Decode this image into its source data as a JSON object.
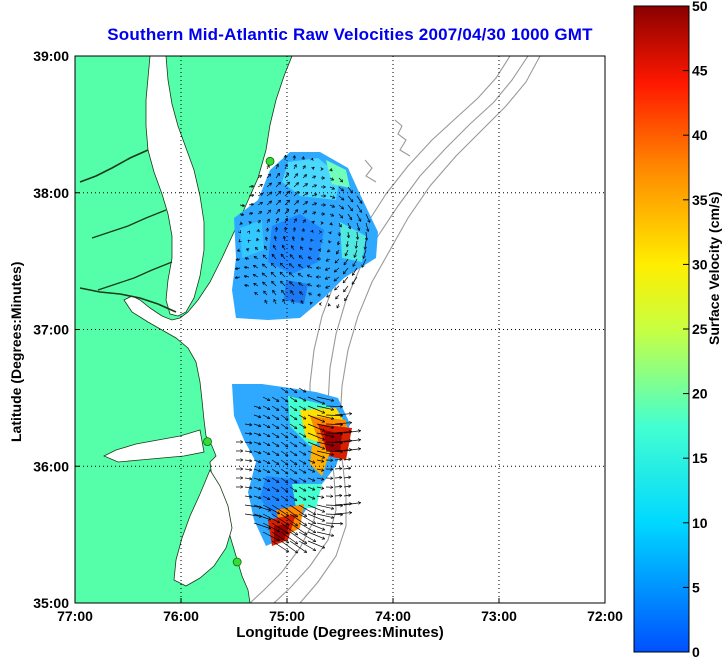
{
  "title": "Southern Mid-Atlantic Raw Velocities 2007/04/30 1000 GMT",
  "xlabel": "Longitude (Degrees:Minutes)",
  "ylabel": "Latitude (Degrees:Minutes)",
  "colorbar_label": "Surface Velocity (cm/s)",
  "colors": {
    "land": "#55ffaa",
    "water": "#ffffff",
    "bathymetry": "#9a9a9a",
    "coast": "#1a3a1a",
    "station": "#33dd33"
  },
  "map": {
    "lon_ticks": [
      "77:00",
      "76:00",
      "75:00",
      "74:00",
      "73:00",
      "72:00"
    ],
    "lat_ticks": [
      "39:00",
      "38:00",
      "37:00",
      "36:00",
      "35:00"
    ],
    "lon_range": [
      -77,
      -72
    ],
    "lat_range": [
      35,
      39
    ],
    "grid": true
  },
  "colorbar": {
    "range": [
      0,
      50
    ],
    "ticks": [
      "0",
      "5",
      "10",
      "15",
      "20",
      "25",
      "30",
      "35",
      "40",
      "45",
      "50"
    ]
  },
  "stations": [
    {
      "lon": -75.16,
      "lat": 38.23
    },
    {
      "lon": -75.75,
      "lat": 36.18
    },
    {
      "lon": -75.47,
      "lat": 35.3
    }
  ]
}
